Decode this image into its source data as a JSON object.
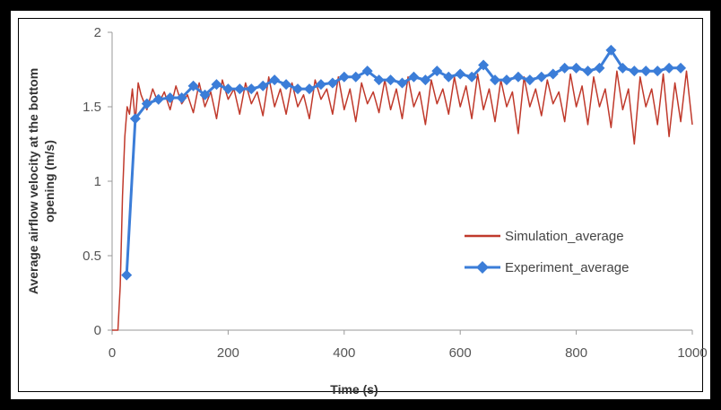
{
  "chart_data": {
    "type": "line",
    "xlabel": "Time (s)",
    "ylabel_line1": "Average airflow velocity at the bottom",
    "ylabel_line2": "opening (m/s)",
    "xlim": [
      0,
      1000
    ],
    "ylim": [
      0,
      2
    ],
    "x_ticks": [
      "0",
      "200",
      "400",
      "600",
      "800",
      "1000"
    ],
    "y_ticks": [
      "0",
      "0.5",
      "1",
      "1.5",
      "2"
    ],
    "grid": false,
    "legend_position": "center-right",
    "series": [
      {
        "name": "Simulation_average",
        "color": "#c0392b",
        "marker": "none",
        "x": [
          0,
          10,
          14,
          18,
          22,
          26,
          30,
          35,
          40,
          45,
          50,
          60,
          70,
          80,
          90,
          100,
          110,
          120,
          130,
          140,
          150,
          160,
          170,
          180,
          190,
          200,
          210,
          220,
          230,
          240,
          250,
          260,
          270,
          280,
          290,
          300,
          310,
          320,
          330,
          340,
          350,
          360,
          370,
          380,
          390,
          400,
          410,
          420,
          430,
          440,
          450,
          460,
          470,
          480,
          490,
          500,
          510,
          520,
          530,
          540,
          550,
          560,
          570,
          580,
          590,
          600,
          610,
          620,
          630,
          640,
          650,
          660,
          670,
          680,
          690,
          700,
          710,
          720,
          730,
          740,
          750,
          760,
          770,
          780,
          790,
          800,
          810,
          820,
          830,
          840,
          850,
          860,
          870,
          880,
          890,
          900,
          910,
          920,
          930,
          940,
          950,
          960,
          970,
          980,
          990,
          1000
        ],
        "y": [
          0,
          0,
          0.3,
          0.9,
          1.3,
          1.5,
          1.45,
          1.62,
          1.4,
          1.66,
          1.58,
          1.48,
          1.62,
          1.52,
          1.6,
          1.48,
          1.64,
          1.52,
          1.58,
          1.46,
          1.66,
          1.5,
          1.6,
          1.42,
          1.68,
          1.55,
          1.62,
          1.45,
          1.66,
          1.52,
          1.6,
          1.44,
          1.7,
          1.5,
          1.62,
          1.45,
          1.66,
          1.5,
          1.58,
          1.42,
          1.68,
          1.55,
          1.62,
          1.45,
          1.7,
          1.48,
          1.62,
          1.4,
          1.66,
          1.52,
          1.6,
          1.46,
          1.68,
          1.48,
          1.62,
          1.42,
          1.7,
          1.5,
          1.6,
          1.38,
          1.68,
          1.52,
          1.62,
          1.45,
          1.7,
          1.5,
          1.64,
          1.42,
          1.72,
          1.48,
          1.62,
          1.4,
          1.68,
          1.5,
          1.6,
          1.32,
          1.7,
          1.5,
          1.62,
          1.44,
          1.68,
          1.52,
          1.6,
          1.4,
          1.72,
          1.5,
          1.64,
          1.38,
          1.7,
          1.5,
          1.62,
          1.36,
          1.74,
          1.48,
          1.62,
          1.25,
          1.7,
          1.5,
          1.62,
          1.38,
          1.72,
          1.3,
          1.66,
          1.4,
          1.74,
          1.38
        ]
      },
      {
        "name": "Experiment_average",
        "color": "#3b7dd8",
        "marker": "diamond",
        "x": [
          25,
          40,
          60,
          80,
          100,
          120,
          140,
          160,
          180,
          200,
          220,
          240,
          260,
          280,
          300,
          320,
          340,
          360,
          380,
          400,
          420,
          440,
          460,
          480,
          500,
          520,
          540,
          560,
          580,
          600,
          620,
          640,
          660,
          680,
          700,
          720,
          740,
          760,
          780,
          800,
          820,
          840,
          860,
          880,
          900,
          920,
          940,
          960,
          980
        ],
        "y": [
          0.37,
          1.42,
          1.52,
          1.55,
          1.56,
          1.56,
          1.64,
          1.58,
          1.65,
          1.62,
          1.62,
          1.62,
          1.64,
          1.68,
          1.65,
          1.62,
          1.62,
          1.65,
          1.66,
          1.7,
          1.7,
          1.74,
          1.68,
          1.68,
          1.66,
          1.7,
          1.68,
          1.74,
          1.7,
          1.72,
          1.7,
          1.78,
          1.68,
          1.68,
          1.7,
          1.68,
          1.7,
          1.72,
          1.76,
          1.76,
          1.74,
          1.76,
          1.88,
          1.76,
          1.74,
          1.74,
          1.74,
          1.76,
          1.76
        ]
      }
    ]
  }
}
